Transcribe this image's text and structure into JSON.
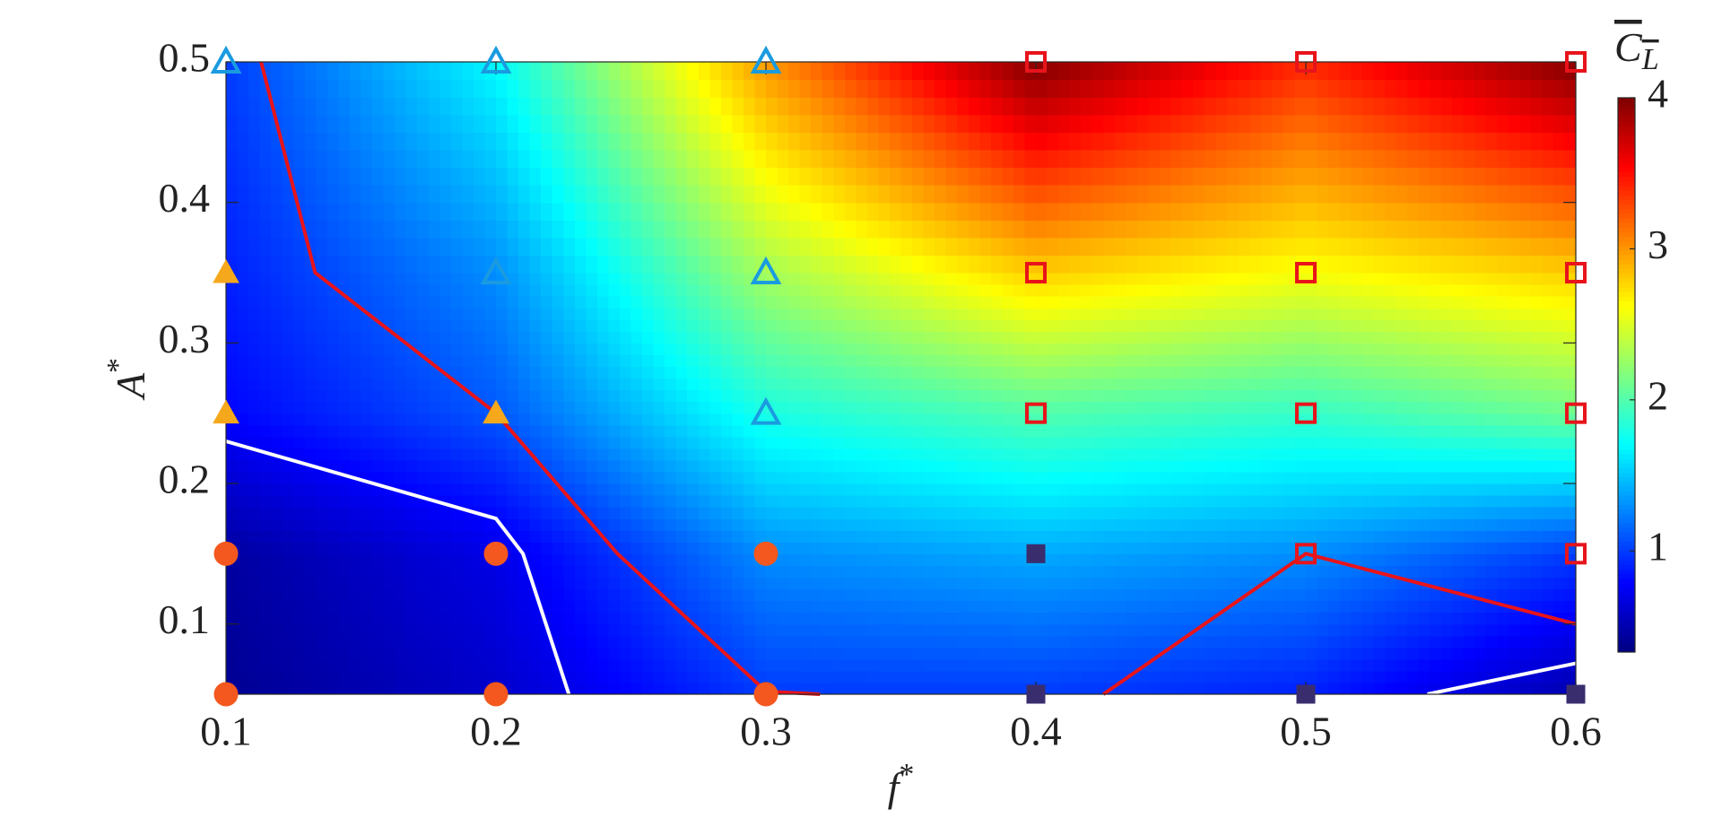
{
  "chart_data": {
    "type": "contour",
    "xlabel": "f",
    "xlabel_sup": "*",
    "ylabel": "A",
    "ylabel_sup": "*",
    "colorbar_label": "C",
    "colorbar_label_sub": "L",
    "xlim": [
      0.1,
      0.6
    ],
    "xticks": [
      0.1,
      0.2,
      0.3,
      0.4,
      0.5,
      0.6
    ],
    "ylim": [
      0.05,
      0.5
    ],
    "yticks": [
      0.1,
      0.2,
      0.3,
      0.4,
      0.5
    ],
    "clim": [
      0.33,
      4.0
    ],
    "cticks": [
      1,
      2,
      3,
      4
    ],
    "colormap": "jet",
    "field": {
      "x": [
        0.1,
        0.2,
        0.3,
        0.4,
        0.5,
        0.6
      ],
      "y": [
        0.05,
        0.15,
        0.25,
        0.35,
        0.5
      ],
      "z": [
        [
          0.4,
          0.6,
          1.0,
          1.0,
          0.9,
          0.5
        ],
        [
          0.45,
          0.7,
          1.3,
          1.4,
          1.3,
          1.0
        ],
        [
          0.8,
          1.1,
          1.8,
          2.0,
          1.9,
          2.1
        ],
        [
          0.9,
          1.3,
          2.3,
          2.8,
          2.6,
          2.8
        ],
        [
          1.0,
          1.7,
          3.0,
          4.0,
          3.4,
          4.0
        ]
      ]
    },
    "contours": [
      {
        "color": "#e8141b",
        "x": [
          0.113,
          0.133,
          0.2,
          0.245,
          0.3,
          0.32,
          null,
          0.425,
          0.5,
          0.6
        ],
        "y": [
          0.5,
          0.35,
          0.25,
          0.15,
          0.052,
          0.05,
          null,
          0.05,
          0.15,
          0.1
        ]
      },
      {
        "color": "#ffffff",
        "x": [
          0.1,
          0.2,
          0.21,
          0.227,
          null,
          0.545,
          0.6
        ],
        "y": [
          0.23,
          0.175,
          0.15,
          0.05,
          null,
          0.05,
          0.072
        ]
      }
    ],
    "series": [
      {
        "marker": "triangle",
        "filled": false,
        "color": "#1a9be0",
        "x": [
          0.1,
          0.2,
          0.3,
          0.2,
          0.3,
          0.3
        ],
        "y": [
          0.5,
          0.5,
          0.5,
          0.35,
          0.35,
          0.25
        ]
      },
      {
        "marker": "triangle",
        "filled": true,
        "color": "#f5a81c",
        "x": [
          0.1,
          0.1,
          0.2
        ],
        "y": [
          0.35,
          0.25,
          0.25
        ]
      },
      {
        "marker": "circle",
        "filled": true,
        "color": "#f4581e",
        "x": [
          0.1,
          0.2,
          0.3,
          0.1,
          0.2,
          0.3
        ],
        "y": [
          0.15,
          0.15,
          0.15,
          0.05,
          0.05,
          0.05
        ]
      },
      {
        "marker": "square",
        "filled": true,
        "color": "#3a2d6e",
        "x": [
          0.4,
          0.4,
          0.5,
          0.6
        ],
        "y": [
          0.15,
          0.05,
          0.05,
          0.05
        ]
      },
      {
        "marker": "square",
        "filled": false,
        "color": "#e8141b",
        "x": [
          0.4,
          0.5,
          0.6,
          0.4,
          0.5,
          0.6,
          0.4,
          0.5,
          0.6,
          0.6,
          0.5
        ],
        "y": [
          0.5,
          0.5,
          0.5,
          0.35,
          0.35,
          0.35,
          0.25,
          0.25,
          0.25,
          0.15,
          0.15
        ]
      }
    ]
  }
}
